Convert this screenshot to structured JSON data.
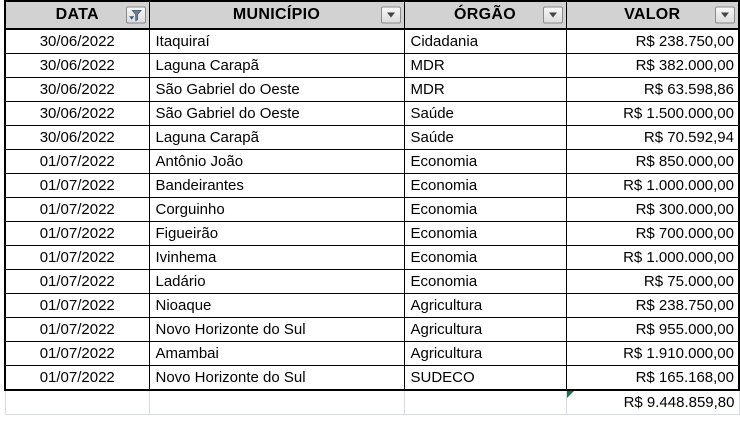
{
  "colors": {
    "header_bg": "#d2d2d2",
    "table_border": "#000000",
    "sheet_gridline": "#d7dce4",
    "error_triangle": "#1e7145",
    "filter_button_border": "#8a8a8a"
  },
  "table": {
    "columns": [
      {
        "label": "DATA",
        "filter_icon": "funnel-filter-icon",
        "filter_state": "filtered"
      },
      {
        "label": "MUNICÍPIO",
        "filter_icon": "chevron-down-icon",
        "filter_state": "none"
      },
      {
        "label": "ÓRGÃO",
        "filter_icon": "chevron-down-icon",
        "filter_state": "none"
      },
      {
        "label": "VALOR",
        "filter_icon": "chevron-down-icon",
        "filter_state": "none"
      }
    ],
    "rows": [
      [
        "30/06/2022",
        "Itaquiraí",
        "Cidadania",
        "R$ 238.750,00"
      ],
      [
        "30/06/2022",
        "Laguna Carapã",
        "MDR",
        "R$ 382.000,00"
      ],
      [
        "30/06/2022",
        "São Gabriel do Oeste",
        "MDR",
        "R$ 63.598,86"
      ],
      [
        "30/06/2022",
        "São Gabriel do Oeste",
        "Saúde",
        "R$ 1.500.000,00"
      ],
      [
        "30/06/2022",
        "Laguna Carapã",
        "Saúde",
        "R$ 70.592,94"
      ],
      [
        "01/07/2022",
        "Antônio João",
        "Economia",
        "R$ 850.000,00"
      ],
      [
        "01/07/2022",
        "Bandeirantes",
        "Economia",
        "R$ 1.000.000,00"
      ],
      [
        "01/07/2022",
        "Corguinho",
        "Economia",
        "R$ 300.000,00"
      ],
      [
        "01/07/2022",
        "Figueirão",
        "Economia",
        "R$ 700.000,00"
      ],
      [
        "01/07/2022",
        "Ivinhema",
        "Economia",
        "R$ 1.000.000,00"
      ],
      [
        "01/07/2022",
        "Ladário",
        "Economia",
        "R$ 75.000,00"
      ],
      [
        "01/07/2022",
        "Nioaque",
        "Agricultura",
        "R$ 238.750,00"
      ],
      [
        "01/07/2022",
        "Novo Horizonte do Sul",
        "Agricultura",
        "R$ 955.000,00"
      ],
      [
        "01/07/2022",
        "Amambai",
        "Agricultura",
        "R$ 1.910.000,00"
      ],
      [
        "01/07/2022",
        "Novo Horizonte do Sul",
        "SUDECO",
        "R$ 165.168,00"
      ]
    ],
    "total_value": "R$ 9.448.859,80"
  }
}
